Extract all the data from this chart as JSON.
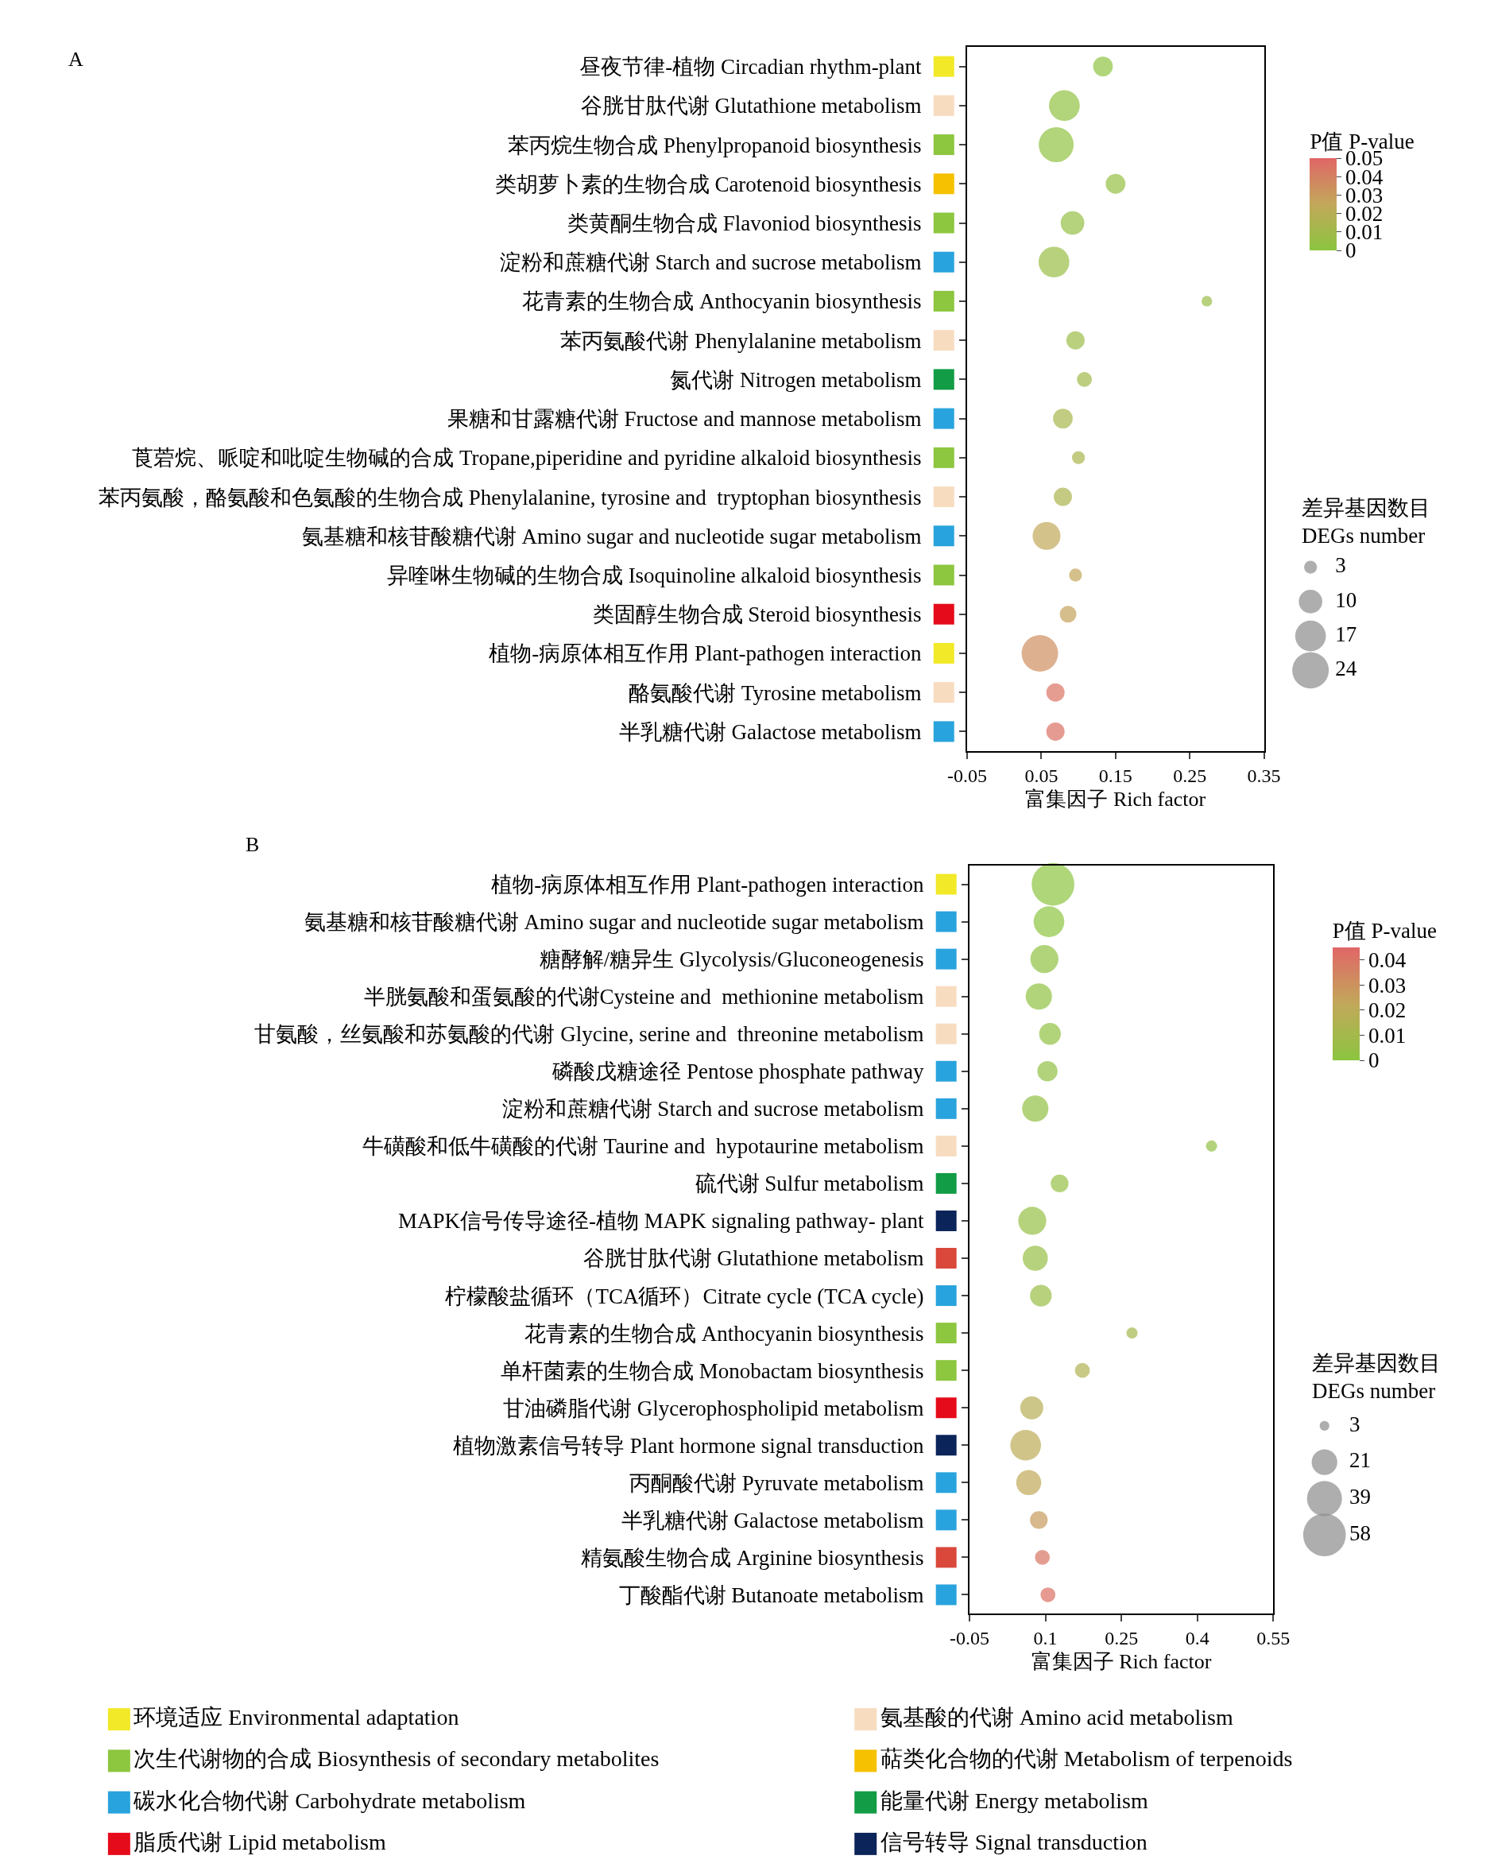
{
  "chart_data": [
    {
      "type": "bubble",
      "orientation": "horizontal",
      "title": "A",
      "xlabel": "富集因子 Rich factor",
      "clabel": "P值 P-value",
      "legend_title": "差异基因数目\nDEGs number",
      "categories": [
        "昼夜节律-植物 Circadian rhythm-plant",
        "谷胱甘肽代谢 Glutathione metabolism",
        "苯丙烷生物合成 Phenylpropanoid biosynthesis",
        "类胡萝卜素的生物合成 Carotenoid biosynthesis",
        "类黄酮生物合成 Flavoniod biosynthesis",
        "淀粉和蔗糖代谢 Starch and sucrose metabolism",
        "花青素的生物合成 Anthocyanin biosynthesis",
        "苯丙氨酸代谢 Phenylalanine metabolism",
        "氮代谢 Nitrogen metabolism",
        "果糖和甘露糖代谢 Fructose and mannose metabolism",
        "莨菪烷、哌啶和吡啶生物碱的合成 Tropane,piperidine and pyridine alkaloid biosynthesis",
        "苯丙氨酸，酪氨酸和色氨酸的生物合成 Phenylalanine, tyrosine and  tryptophan biosynthesis",
        "氨基糖和核苷酸糖代谢 Amino sugar and nucleotide sugar metabolism",
        "异喹啉生物碱的生物合成 Isoquinoline alkaloid biosynthesis",
        "类固醇生物合成 Steroid biosynthesis",
        "植物-病原体相互作用 Plant-pathogen interaction",
        "酪氨酸代谢 Tyrosine metabolism",
        "半乳糖代谢 Galactose metabolism"
      ],
      "series": [
        {
          "type": "bubble",
          "values": [
            0.133,
            0.081,
            0.07,
            0.15,
            0.092,
            0.067,
            0.273,
            0.096,
            0.108,
            0.079,
            0.1,
            0.079,
            0.057,
            0.096,
            0.086,
            0.048,
            0.069,
            0.069
          ],
          "sizes": [
            7,
            17,
            22,
            7,
            10,
            17,
            2,
            6,
            4,
            7,
            3,
            6,
            14,
            3,
            5,
            24,
            6,
            6
          ],
          "cvalues": [
            0.002,
            0.003,
            0.003,
            0.004,
            0.005,
            0.006,
            0.007,
            0.008,
            0.01,
            0.013,
            0.014,
            0.015,
            0.025,
            0.026,
            0.027,
            0.035,
            0.045,
            0.046
          ]
        }
      ],
      "size_legend": [
        3,
        10,
        17,
        24
      ],
      "xlim": [
        -0.05,
        0.35
      ],
      "xticks": [
        -0.05,
        0.05,
        0.15,
        0.25,
        0.35
      ],
      "clim": [
        0,
        0.05
      ],
      "cticks": [
        0,
        0.01,
        0.02,
        0.03,
        0.04,
        0.05
      ]
    },
    {
      "type": "other",
      "categories": [
        null,
        null,
        null,
        null,
        null,
        null,
        null,
        null,
        null,
        null,
        null,
        null,
        null,
        null,
        null,
        null,
        null,
        null
      ],
      "colors": [
        "#f2e928",
        "#f8dcc0",
        "#8dc63f",
        "#f5c100",
        "#8dc63f",
        "#29a3dd",
        "#8dc63f",
        "#f8dcc0",
        "#119c45",
        "#29a3dd",
        "#8dc63f",
        "#f8dcc0",
        "#29a3dd",
        "#8dc63f",
        "#e60b1a",
        "#f2e928",
        "#f8dcc0",
        "#29a3dd"
      ]
    },
    {
      "type": "bubble",
      "orientation": "horizontal",
      "title": "B",
      "xlabel": "富集因子 Rich factor",
      "clabel": "P值 P-value",
      "legend_title": "差异基因数目\nDEGs number",
      "categories": [
        "植物-病原体相互作用 Plant-pathogen interaction",
        "氨基糖和核苷酸糖代谢 Amino sugar and nucleotide sugar metabolism",
        "糖酵解/糖异生 Glycolysis/Gluconeogenesis",
        "半胱氨酸和蛋氨酸的代谢Cysteine and  methionine metabolism",
        "甘氨酸，丝氨酸和苏氨酸的代谢 Glycine, serine and  threonine metabolism",
        "磷酸戊糖途径 Pentose phosphate pathway",
        "淀粉和蔗糖代谢 Starch and sucrose metabolism",
        "牛磺酸和低牛磺酸的代谢 Taurine and  hypotaurine metabolism",
        "硫代谢 Sulfur metabolism",
        "MAPK信号传导途径-植物 MAPK signaling pathway- plant",
        "谷胱甘肽代谢 Glutathione metabolism",
        "柠檬酸盐循环（TCA循环）Citrate cycle (TCA cycle)",
        "花青素的生物合成 Anthocyanin biosynthesis",
        "单杆菌素的生物合成 Monobactam biosynthesis",
        "甘油磷脂代谢 Glycerophospholipid metabolism",
        "植物激素信号转导 Plant hormone signal transduction",
        "丙酮酸代谢 Pyruvate metabolism",
        "半乳糖代谢 Galactose metabolism",
        "精氨酸生物合成 Arginine biosynthesis",
        "丁酸酯代谢 Butanoate metabolism"
      ],
      "series": [
        {
          "type": "bubble",
          "values": [
            0.115,
            0.107,
            0.098,
            0.087,
            0.109,
            0.104,
            0.08,
            0.428,
            0.128,
            0.074,
            0.08,
            0.091,
            0.271,
            0.173,
            0.073,
            0.061,
            0.067,
            0.087,
            0.094,
            0.105
          ],
          "sizes": [
            58,
            30,
            25,
            22,
            15,
            13,
            22,
            4,
            10,
            25,
            20,
            15,
            4,
            7,
            17,
            30,
            20,
            10,
            7,
            7
          ],
          "cvalues": [
            0.001,
            0.001,
            0.002,
            0.002,
            0.002,
            0.003,
            0.003,
            0.003,
            0.004,
            0.004,
            0.005,
            0.006,
            0.01,
            0.015,
            0.018,
            0.02,
            0.022,
            0.027,
            0.04,
            0.042
          ]
        }
      ],
      "size_legend": [
        3,
        21,
        39,
        58
      ],
      "xlim": [
        -0.05,
        0.55
      ],
      "xticks": [
        -0.05,
        0.1,
        0.25,
        0.4,
        0.55
      ],
      "clim": [
        0,
        0.045
      ],
      "cticks": [
        0,
        0.01,
        0.02,
        0.03,
        0.04
      ]
    },
    {
      "type": "other",
      "categories": [
        null,
        null,
        null,
        null,
        null,
        null,
        null,
        null,
        null,
        null,
        null,
        null,
        null,
        null,
        null,
        null,
        null,
        null,
        null,
        null
      ],
      "colors": [
        "#f2e928",
        "#29a3dd",
        "#29a3dd",
        "#f8dcc0",
        "#f8dcc0",
        "#29a3dd",
        "#29a3dd",
        "#f8dcc0",
        "#119c45",
        "#0b2459",
        "#d9483b",
        "#29a3dd",
        "#8dc63f",
        "#8dc63f",
        "#e60b1a",
        "#0b2459",
        "#29a3dd",
        "#29a3dd",
        "#d9483b",
        "#29a3dd"
      ]
    },
    {
      "type": "other",
      "categories": [
        "环境适应 Environmental adaptation",
        "次生代谢物的合成 Biosynthesis of secondary metabolites",
        "碳水化合物代谢 Carbohydrate metabolism",
        "脂质代谢 Lipid metabolism",
        "氨基酸的代谢 Amino acid metabolism",
        "萜类化合物的代谢 Metabolism of terpenoids",
        "能量代谢 Energy metabolism",
        "信号转导 Signal transduction"
      ],
      "colors": [
        "#f2e928",
        "#8dc63f",
        "#29a3dd",
        "#e60b1a",
        "#f8dcc0",
        "#f5c100",
        "#119c45",
        "#0b2459"
      ]
    }
  ]
}
